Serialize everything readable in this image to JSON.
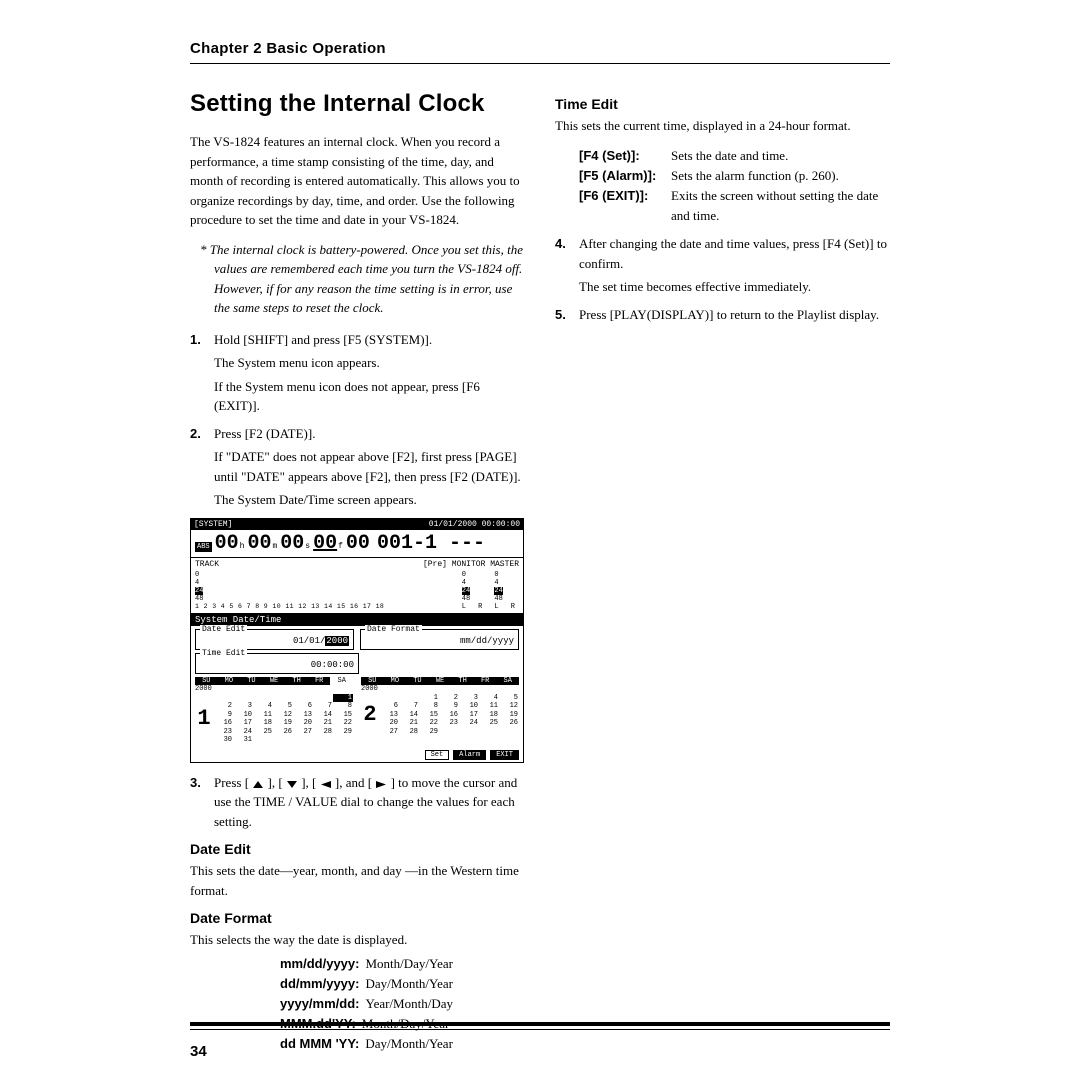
{
  "chapter_header": "Chapter 2 Basic Operation",
  "page_number": "34",
  "left": {
    "title": "Setting the Internal Clock",
    "intro": "The VS-1824 features an internal clock. When you record a performance, a time stamp consisting of the time, day, and month of recording is entered automatically. This allows you to organize recordings by day, time, and order. Use the following procedure to set the time and date in your VS-1824.",
    "note": "The internal clock is battery-powered. Once you set this, the values are remembered each time you turn the VS-1824 off. However, if for any reason the time setting is in error, use the same steps to reset the clock.",
    "step1_a": "Hold [SHIFT] and press [F5 (SYSTEM)].",
    "step1_b": "The System menu icon appears.",
    "step1_c": "If the System menu icon does not appear, press [F6 (EXIT)].",
    "step2_a": "Press [F2 (DATE)].",
    "step2_b": "If \"DATE\" does not appear above [F2], first press [PAGE] until \"DATE\" appears above [F2], then press [F2 (DATE)].",
    "step2_c": "The System Date/Time screen appears.",
    "step3": "Press [ ▲ ], [ ▼ ], [ ◀ ], and [ ▶ ] to move the cursor and use the TIME / VALUE dial to change the values for each setting.",
    "date_edit_head": "Date Edit",
    "date_edit_body": "This sets the date—year, month, and day —in the Western time format.",
    "date_format_head": "Date Format",
    "date_format_body": "This selects the way the date is displayed.",
    "formats": [
      {
        "k": "mm/dd/yyyy:",
        "v": "Month/Day/Year"
      },
      {
        "k": "dd/mm/yyyy:",
        "v": "Day/Month/Year"
      },
      {
        "k": "yyyy/mm/dd:",
        "v": "Year/Month/Day"
      },
      {
        "k": "MMM.dd'YY:",
        "v": "Month/Day/Year"
      },
      {
        "k": "dd MMM 'YY:",
        "v": "Day/Month/Year"
      }
    ]
  },
  "right": {
    "time_edit_head": "Time Edit",
    "time_edit_body": "This sets the current time, displayed in a 24-hour format.",
    "fn": [
      {
        "k": "[F4 (Set)]:",
        "v": "Sets the date and time."
      },
      {
        "k": "[F5 (Alarm)]:",
        "v": "Sets the alarm function (p. 260)."
      },
      {
        "k": "[F6 (EXIT)]:",
        "v": "Exits the screen without setting the date and time."
      }
    ],
    "step4_a": "After changing the date and time values, press [F4 (Set)] to confirm.",
    "step4_b": "The set time becomes effective immediately.",
    "step5": "Press [PLAY(DISPLAY)] to return to the Playlist display."
  },
  "ss": {
    "title_left": "[SYSTEM]",
    "title_right": "01/01/2000 00:00:00",
    "abs": "ABS",
    "time_segments": [
      "00",
      "h",
      "00",
      "m",
      "00",
      "s",
      "00",
      "f",
      "00"
    ],
    "counter": "001-1 ---",
    "track_label": "TRACK",
    "pre": "[Pre]",
    "monitor": "MONITOR",
    "master": "MASTER",
    "scale": [
      "0",
      "4",
      "24",
      "48"
    ],
    "tracknums": "1 2 3 4 5 6 7 8 9 10 11 12 13 14 15 16 17 18",
    "lr": "L R",
    "section": "System Date/Time",
    "date_edit_label": "Date Edit",
    "date_edit_val_pre": "01/01/",
    "date_edit_val_hl": "2000",
    "date_format_label": "Date Format",
    "date_format_val": "mm/dd/yyyy",
    "time_edit_label": "Time Edit",
    "time_edit_val": "00:00:00",
    "days": [
      "SU",
      "MO",
      "TU",
      "WE",
      "TH",
      "FR",
      "SA"
    ],
    "year": "2000",
    "mon1": "1",
    "mon2": "2",
    "cal1": [
      [
        "",
        "",
        "",
        "",
        "",
        "",
        "1"
      ],
      [
        "2",
        "3",
        "4",
        "5",
        "6",
        "7",
        "8"
      ],
      [
        "9",
        "10",
        "11",
        "12",
        "13",
        "14",
        "15"
      ],
      [
        "16",
        "17",
        "18",
        "19",
        "20",
        "21",
        "22"
      ],
      [
        "23",
        "24",
        "25",
        "26",
        "27",
        "28",
        "29"
      ],
      [
        "30",
        "31",
        "",
        "",
        "",
        "",
        ""
      ]
    ],
    "cal2": [
      [
        "",
        "",
        "1",
        "2",
        "3",
        "4",
        "5"
      ],
      [
        "6",
        "7",
        "8",
        "9",
        "10",
        "11",
        "12"
      ],
      [
        "13",
        "14",
        "15",
        "16",
        "17",
        "18",
        "19"
      ],
      [
        "20",
        "21",
        "22",
        "23",
        "24",
        "25",
        "26"
      ],
      [
        "27",
        "28",
        "29",
        "",
        "",
        "",
        ""
      ]
    ],
    "btn_set": "Set",
    "btn_alarm": "Alarm",
    "btn_exit": "EXIT"
  },
  "style": {
    "accent": "#000000",
    "bg": "#ffffff"
  }
}
